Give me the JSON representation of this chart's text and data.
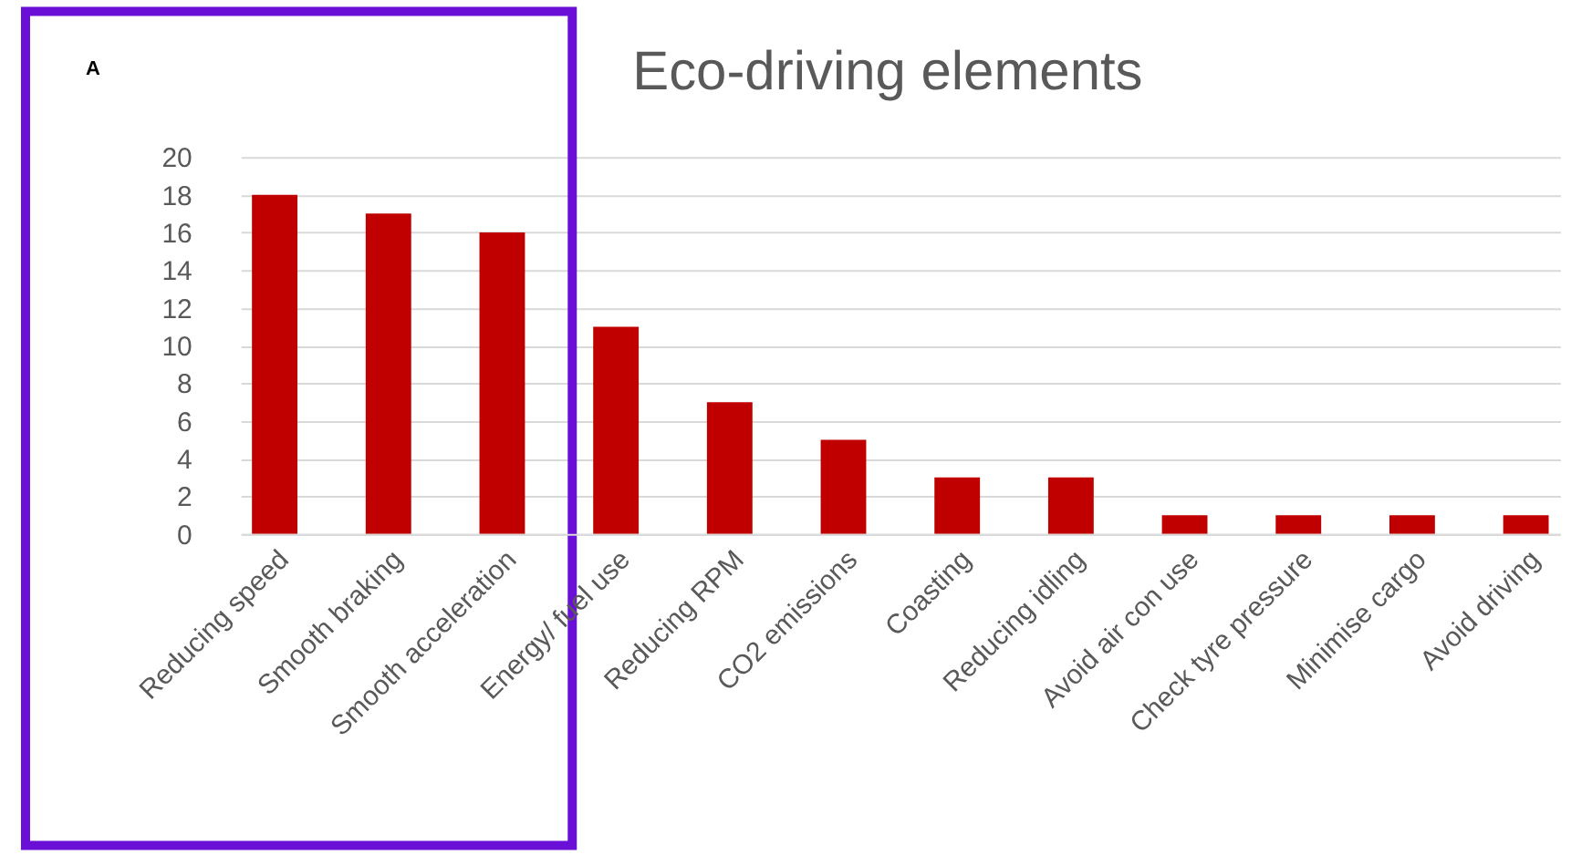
{
  "chart_data": {
    "type": "bar",
    "title": "Eco-driving elements",
    "categories": [
      "Reducing speed",
      "Smooth braking",
      "Smooth acceleration",
      "Energy/ fuel use",
      "Reducing RPM",
      "CO2 emissions",
      "Coasting",
      "Reducing idling",
      "Avoid air con use",
      "Check tyre pressure",
      "Minimise cargo",
      "Avoid driving"
    ],
    "values": [
      18,
      17,
      16,
      11,
      7,
      5,
      3,
      3,
      1,
      1,
      1,
      1
    ],
    "color": "#c00000",
    "ylim": [
      0,
      20
    ],
    "yticks": [
      0,
      2,
      4,
      6,
      8,
      10,
      12,
      14,
      16,
      18,
      20
    ],
    "grid": "y",
    "annotations": [
      "A"
    ]
  }
}
